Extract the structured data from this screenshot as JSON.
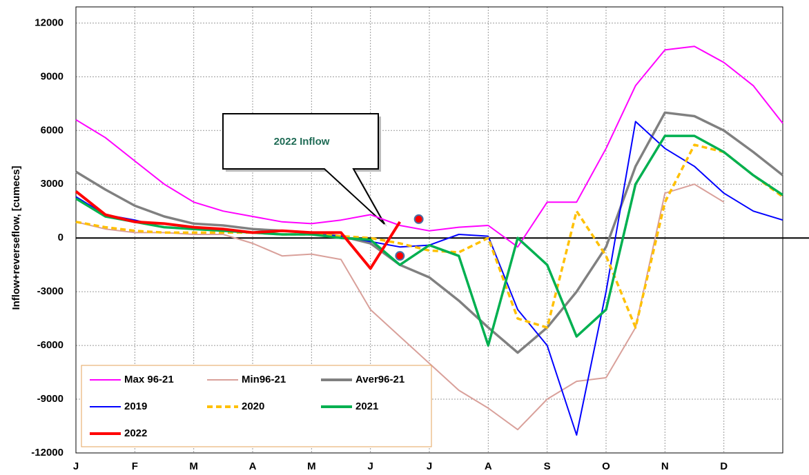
{
  "chart_data": {
    "type": "line",
    "y_label": "Inflow+reverseflow, [cumecs]",
    "x": [
      0,
      0.5,
      1,
      1.5,
      2,
      2.5,
      3,
      3.5,
      4,
      4.5,
      5,
      5.5,
      6,
      6.5,
      7,
      7.5,
      8,
      8.5,
      9,
      9.5,
      10,
      10.5,
      11,
      11.5,
      12
    ],
    "xlim": [
      0,
      12
    ],
    "xticks": [
      {
        "value": 0,
        "label": "J"
      },
      {
        "value": 1,
        "label": "F"
      },
      {
        "value": 2,
        "label": "M"
      },
      {
        "value": 3,
        "label": "A"
      },
      {
        "value": 4,
        "label": "M"
      },
      {
        "value": 5,
        "label": "J"
      },
      {
        "value": 6,
        "label": "J"
      },
      {
        "value": 7,
        "label": "A"
      },
      {
        "value": 8,
        "label": "S"
      },
      {
        "value": 9,
        "label": "O"
      },
      {
        "value": 10,
        "label": "N"
      },
      {
        "value": 11,
        "label": "D"
      }
    ],
    "ylim": [
      -12000,
      12900
    ],
    "yticks": [
      -12000,
      -9000,
      -6000,
      -3000,
      0,
      3000,
      6000,
      9000,
      12000
    ],
    "grid": true,
    "series": [
      {
        "name": "Max 96-21",
        "color": "#ff00ff",
        "values": [
          6600,
          5600,
          4300,
          3000,
          2000,
          1500,
          1200,
          900,
          800,
          1000,
          1300,
          700,
          400,
          600,
          700,
          -500,
          2000,
          2000,
          5000,
          8500,
          10500,
          10700,
          9800,
          8500,
          6400
        ]
      },
      {
        "name": "Min96-21",
        "color": "#d9a09a",
        "values": [
          900,
          500,
          300,
          300,
          200,
          200,
          -300,
          -1000,
          -900,
          -1200,
          -4000,
          -5500,
          -7000,
          -8500,
          -9500,
          -10700,
          -9000,
          -8000,
          -7800,
          -5000,
          2500,
          3000,
          2000,
          null,
          null
        ]
      },
      {
        "name": "Aver96-21",
        "color": "#808080",
        "values": [
          3700,
          2700,
          1800,
          1200,
          800,
          700,
          500,
          400,
          300,
          100,
          -300,
          -1500,
          -2200,
          -3500,
          -5000,
          -6400,
          -5000,
          -3000,
          -500,
          4000,
          7000,
          6800,
          6000,
          4800,
          3500
        ]
      },
      {
        "name": "2019",
        "color": "#0000ff",
        "values": [
          2300,
          1300,
          1000,
          600,
          500,
          400,
          300,
          200,
          200,
          100,
          -200,
          -500,
          -400,
          200,
          100,
          -4000,
          -6000,
          -11000,
          -3000,
          6500,
          5000,
          4000,
          2500,
          1500,
          1000
        ]
      },
      {
        "name": "2020",
        "color": "#ffc000",
        "dashed": true,
        "values": [
          900,
          600,
          400,
          300,
          300,
          300,
          300,
          200,
          200,
          100,
          0,
          -300,
          -700,
          -800,
          0,
          -4500,
          -5000,
          1500,
          -1000,
          -5000,
          2000,
          5200,
          4800,
          3500,
          2300
        ]
      },
      {
        "name": "2021",
        "color": "#00b050",
        "values": [
          2200,
          1200,
          900,
          600,
          500,
          400,
          300,
          200,
          200,
          0,
          -100,
          -1500,
          -400,
          -1000,
          -6000,
          0,
          -1500,
          -5500,
          -4000,
          3000,
          5700,
          5700,
          4800,
          3500,
          2400
        ]
      },
      {
        "name": "2022",
        "color": "#ff0000",
        "values": [
          2600,
          1300,
          900,
          800,
          600,
          500,
          300,
          400,
          300,
          300,
          -1700,
          900,
          null,
          null,
          null,
          null,
          null,
          null,
          null,
          null,
          null,
          null,
          null,
          null,
          null
        ]
      }
    ],
    "annotation": {
      "text": "2022 Inflow",
      "markers": [
        {
          "x": 5.82,
          "y": 1050
        },
        {
          "x": 5.5,
          "y": -1000
        }
      ]
    }
  }
}
